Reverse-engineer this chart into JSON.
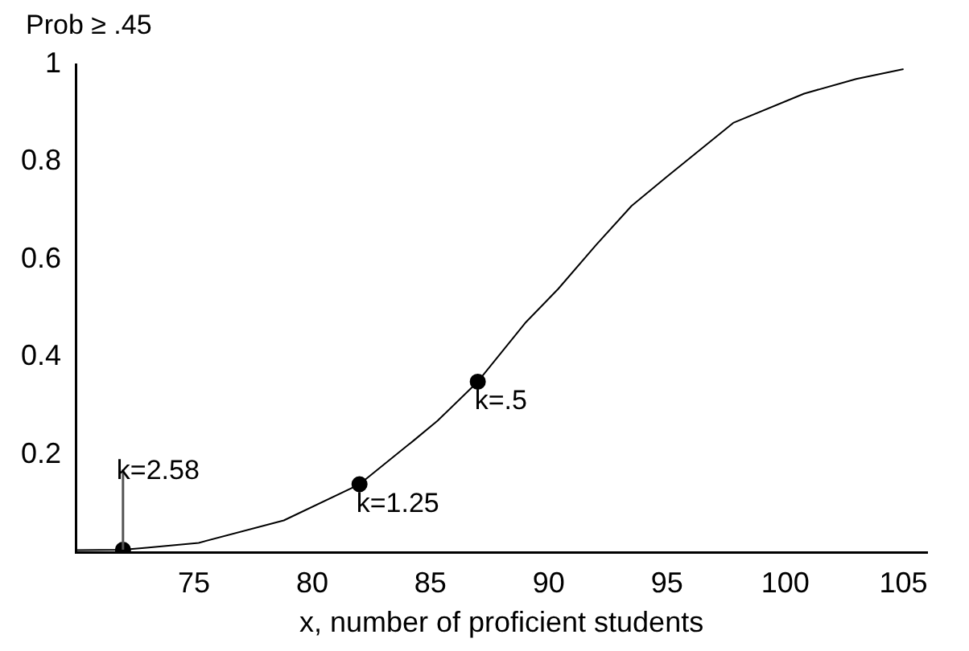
{
  "chart_data": {
    "type": "line",
    "xlabel": "x, number of proficient students",
    "ylabel": "Prob ≥ .45",
    "xlim": [
      70,
      106
    ],
    "xticks": [
      75,
      80,
      85,
      90,
      95,
      100,
      105
    ],
    "ylim": [
      0,
      1
    ],
    "yticks": [
      0.2,
      0.4,
      0.6,
      0.8,
      1
    ],
    "series": [
      {
        "color": "#000000",
        "marker": "none",
        "x": [
          70,
          72,
          73,
          75.2,
          78.8,
          82,
          84.3,
          85.3,
          87,
          89,
          90.4,
          92,
          93.5,
          95,
          97.8,
          100.8,
          103,
          105
        ],
        "values": [
          0.005,
          0.006,
          0.01,
          0.02,
          0.066,
          0.14,
          0.23,
          0.27,
          0.35,
          0.47,
          0.54,
          0.63,
          0.71,
          0.77,
          0.88,
          0.94,
          0.97,
          0.99
        ]
      },
      {
        "type": "scatter",
        "color": "#000000",
        "marker": "circle",
        "x": [
          72,
          82,
          87
        ],
        "values": [
          0.006,
          0.14,
          0.35
        ]
      }
    ],
    "annotations": [
      {
        "text": "k=2.58",
        "x": 72,
        "y": 0.006
      },
      {
        "text": "k=1.25",
        "x": 82,
        "y": 0.14
      },
      {
        "text": "k=.5",
        "x": 87,
        "y": 0.35
      }
    ]
  }
}
